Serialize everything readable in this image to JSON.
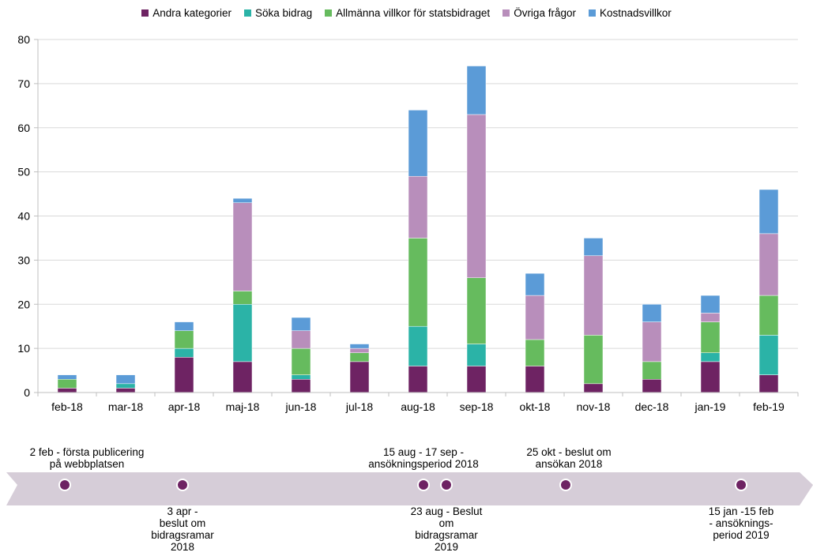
{
  "colors": {
    "andra": "#6E2363",
    "soka": "#2BB3A7",
    "allmanna": "#66BB5E",
    "ovriga": "#B88EBB",
    "kostnad": "#5B9BD7",
    "axis": "#bfbfbf",
    "grid": "#d9d9d9",
    "timeline": "#d6cdd8",
    "dot": "#6E2363"
  },
  "chart_data": {
    "type": "bar",
    "stacked": true,
    "categories": [
      "feb-18",
      "mar-18",
      "apr-18",
      "maj-18",
      "jun-18",
      "jul-18",
      "aug-18",
      "sep-18",
      "okt-18",
      "nov-18",
      "dec-18",
      "jan-19",
      "feb-19"
    ],
    "series": [
      {
        "name": "Andra kategorier",
        "color_key": "andra",
        "values": [
          1,
          1,
          8,
          7,
          3,
          7,
          6,
          6,
          6,
          2,
          3,
          7,
          4
        ]
      },
      {
        "name": "Söka bidrag",
        "color_key": "soka",
        "values": [
          0,
          1,
          2,
          13,
          1,
          0,
          9,
          5,
          0,
          0,
          0,
          2,
          9
        ]
      },
      {
        "name": "Allmänna villkor för statsbidraget",
        "color_key": "allmanna",
        "values": [
          2,
          0,
          4,
          3,
          6,
          2,
          20,
          15,
          6,
          11,
          4,
          7,
          9
        ]
      },
      {
        "name": "Övriga frågor",
        "color_key": "ovriga",
        "values": [
          0,
          0,
          0,
          20,
          4,
          1,
          14,
          37,
          10,
          18,
          9,
          2,
          14
        ]
      },
      {
        "name": "Kostnadsvillkor",
        "color_key": "kostnad",
        "values": [
          1,
          2,
          2,
          1,
          3,
          1,
          15,
          11,
          5,
          4,
          4,
          4,
          10
        ]
      }
    ],
    "ylim": [
      0,
      80
    ],
    "yticks": [
      0,
      10,
      20,
      30,
      40,
      50,
      60,
      70,
      80
    ],
    "grid": true,
    "legend_position": "top"
  },
  "timeline": {
    "events": [
      {
        "lines": [
          "2 feb - första publicering",
          "på webbplatsen"
        ],
        "position": "above",
        "month": 0
      },
      {
        "lines": [
          "3 apr -",
          "beslut om",
          "bidragsramar",
          "2018"
        ],
        "position": "below",
        "month": 2
      },
      {
        "lines": [
          "15 aug - 17 sep -",
          "ansökningsperiod 2018"
        ],
        "position": "above",
        "month": 6
      },
      {
        "lines": [
          "23 aug - Beslut",
          "om",
          "bidragsramar",
          "2019"
        ],
        "position": "below",
        "month": 6
      },
      {
        "lines": [
          "25 okt - beslut om",
          "ansökan 2018"
        ],
        "position": "above",
        "month": 8
      },
      {
        "lines": [
          "15 jan -15 feb",
          "-  ansöknings-",
          "period 2019"
        ],
        "position": "below",
        "month": 11
      }
    ]
  }
}
